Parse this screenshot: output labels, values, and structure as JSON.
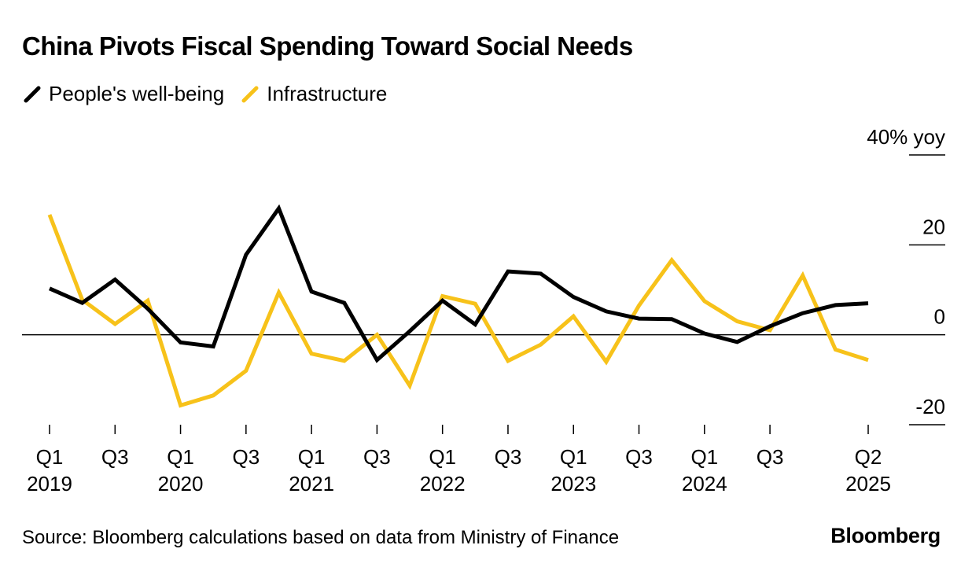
{
  "title": "China Pivots Fiscal Spending Toward Social Needs",
  "source": "Source: Bloomberg calculations based on data from Ministry of Finance",
  "brand": "Bloomberg",
  "colors": {
    "people": "#000000",
    "infrastructure": "#f7c21a",
    "axis": "#000000"
  },
  "chart_data": {
    "type": "line",
    "x": [
      "2019Q1",
      "2019Q2",
      "2019Q3",
      "2019Q4",
      "2020Q1",
      "2020Q2",
      "2020Q3",
      "2020Q4",
      "2021Q1",
      "2021Q2",
      "2021Q3",
      "2021Q4",
      "2022Q1",
      "2022Q2",
      "2022Q3",
      "2022Q4",
      "2023Q1",
      "2023Q2",
      "2023Q3",
      "2023Q4",
      "2024Q1",
      "2024Q2",
      "2024Q3",
      "2024Q4",
      "2025Q1",
      "2025Q2"
    ],
    "series": [
      {
        "name": "People's well-being",
        "values": [
          10.3,
          7.1,
          12.3,
          5.8,
          -1.7,
          -2.6,
          17.8,
          28.1,
          9.6,
          7.1,
          -5.6,
          0.8,
          7.6,
          2.3,
          14.1,
          13.6,
          8.4,
          5.2,
          3.6,
          3.5,
          0.3,
          -1.6,
          1.9,
          4.8,
          6.6,
          7.0
        ]
      },
      {
        "name": "Infrastructure",
        "values": [
          26.7,
          7.8,
          2.4,
          7.6,
          -15.7,
          -13.5,
          -8.0,
          9.4,
          -4.2,
          -5.8,
          0.0,
          -11.3,
          8.6,
          6.9,
          -5.8,
          -2.2,
          4.1,
          -6.0,
          6.5,
          16.6,
          7.5,
          3.0,
          1.0,
          13.2,
          -3.3,
          -5.6
        ]
      }
    ],
    "ylim": [
      -20,
      40
    ],
    "yticks": [
      {
        "value": 40,
        "label": "40% yoy"
      },
      {
        "value": 20,
        "label": "20"
      },
      {
        "value": 0,
        "label": "0"
      },
      {
        "value": -20,
        "label": "-20"
      }
    ],
    "xtick_labels": [
      {
        "x": "2019Q1",
        "quarter": "Q1",
        "year": "2019"
      },
      {
        "x": "2019Q3",
        "quarter": "Q3",
        "year": ""
      },
      {
        "x": "2020Q1",
        "quarter": "Q1",
        "year": "2020"
      },
      {
        "x": "2020Q3",
        "quarter": "Q3",
        "year": ""
      },
      {
        "x": "2021Q1",
        "quarter": "Q1",
        "year": "2021"
      },
      {
        "x": "2021Q3",
        "quarter": "Q3",
        "year": ""
      },
      {
        "x": "2022Q1",
        "quarter": "Q1",
        "year": "2022"
      },
      {
        "x": "2022Q3",
        "quarter": "Q3",
        "year": ""
      },
      {
        "x": "2023Q1",
        "quarter": "Q1",
        "year": "2023"
      },
      {
        "x": "2023Q3",
        "quarter": "Q3",
        "year": ""
      },
      {
        "x": "2024Q1",
        "quarter": "Q1",
        "year": "2024"
      },
      {
        "x": "2024Q3",
        "quarter": "Q3",
        "year": ""
      },
      {
        "x": "2025Q2",
        "quarter": "Q2",
        "year": "2025"
      }
    ],
    "grid": false,
    "legend_position": "top-left"
  }
}
